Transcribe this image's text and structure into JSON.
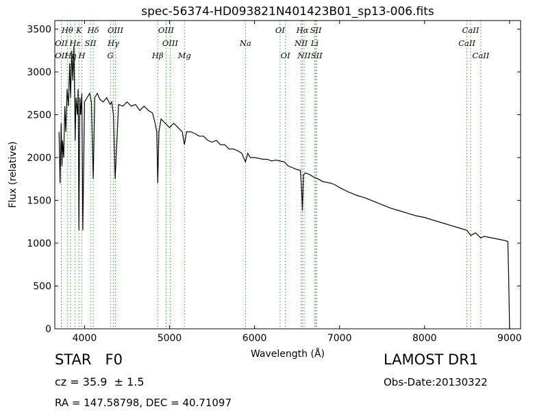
{
  "chart_data": {
    "type": "line",
    "title": "spec-56374-HD093821N401423B01_sp13-006.fits",
    "xlabel": "Wavelength (Å)",
    "ylabel": "Flux (relative)",
    "xlim": [
      3650,
      9130
    ],
    "ylim": [
      0,
      3600
    ],
    "xticks": [
      4000,
      5000,
      6000,
      7000,
      8000,
      9000
    ],
    "yticks": [
      0,
      500,
      1000,
      1500,
      2000,
      2500,
      3000,
      3500
    ],
    "grid": false,
    "line_color": "#000000",
    "marker_color": "#2ca02c",
    "series": [
      {
        "x": [
          3700,
          3712,
          3725,
          3735,
          3742,
          3755,
          3768,
          3780,
          3795,
          3810,
          3825,
          3835,
          3850,
          3862,
          3875,
          3885,
          3889,
          3900,
          3915,
          3925,
          3934,
          3945,
          3955,
          3968,
          3980,
          4000,
          4030,
          4060,
          4080,
          4102,
          4120,
          4150,
          4180,
          4220,
          4260,
          4300,
          4320,
          4340,
          4360,
          4400,
          4450,
          4500,
          4550,
          4600,
          4650,
          4700,
          4750,
          4800,
          4830,
          4850,
          4861,
          4875,
          4900,
          4950,
          5000,
          5050,
          5100,
          5150,
          5175,
          5200,
          5250,
          5300,
          5350,
          5400,
          5450,
          5500,
          5550,
          5600,
          5650,
          5700,
          5750,
          5800,
          5850,
          5893,
          5920,
          5950,
          6000,
          6050,
          6100,
          6150,
          6200,
          6250,
          6300,
          6350,
          6400,
          6450,
          6500,
          6540,
          6555,
          6563,
          6575,
          6600,
          6650,
          6700,
          6750,
          6800,
          6850,
          6900,
          6950,
          7000,
          7100,
          7200,
          7300,
          7400,
          7500,
          7600,
          7700,
          7800,
          7900,
          8000,
          8100,
          8200,
          8300,
          8400,
          8500,
          8542,
          8600,
          8662,
          8700,
          8800,
          8900,
          8950,
          8980,
          8990,
          9000,
          9010
        ],
        "y": [
          2300,
          1700,
          2400,
          1900,
          2200,
          2000,
          2600,
          2300,
          2800,
          2600,
          3100,
          2700,
          3250,
          2900,
          3300,
          2600,
          2200,
          2700,
          2500,
          2800,
          1150,
          2700,
          2500,
          2750,
          1150,
          2650,
          2700,
          2750,
          2650,
          1750,
          2700,
          2750,
          2680,
          2650,
          2700,
          2620,
          2650,
          2500,
          1750,
          2620,
          2600,
          2650,
          2600,
          2620,
          2550,
          2600,
          2550,
          2520,
          2400,
          2300,
          1700,
          2300,
          2450,
          2400,
          2350,
          2400,
          2350,
          2300,
          2150,
          2300,
          2300,
          2280,
          2250,
          2250,
          2200,
          2180,
          2200,
          2150,
          2150,
          2100,
          2100,
          2080,
          2050,
          1950,
          2050,
          2000,
          2000,
          1990,
          1980,
          1980,
          1960,
          1970,
          1960,
          1950,
          1900,
          1880,
          1860,
          1850,
          1600,
          1380,
          1800,
          1820,
          1800,
          1770,
          1750,
          1720,
          1710,
          1700,
          1680,
          1650,
          1600,
          1560,
          1530,
          1490,
          1450,
          1410,
          1380,
          1350,
          1320,
          1300,
          1270,
          1240,
          1210,
          1180,
          1150,
          1090,
          1120,
          1060,
          1080,
          1060,
          1040,
          1030,
          1020,
          600,
          0,
          0
        ]
      }
    ],
    "lines": [
      {
        "label": "Hθ",
        "x": 3798,
        "row": 0
      },
      {
        "label": "K",
        "x": 3934,
        "row": 0
      },
      {
        "label": "Hδ",
        "x": 4102,
        "row": 0
      },
      {
        "label": "OIII",
        "x": 4363,
        "row": 0
      },
      {
        "label": "OIII",
        "x": 4959,
        "row": 0
      },
      {
        "label": "OI",
        "x": 6300,
        "row": 0
      },
      {
        "label": "Hα",
        "x": 6563,
        "row": 0
      },
      {
        "label": "SII",
        "x": 6720,
        "row": 0
      },
      {
        "label": "CaII",
        "x": 8542,
        "row": 0
      },
      {
        "label": "OII",
        "x": 3727,
        "row": 1
      },
      {
        "label": "Hε",
        "x": 3889,
        "row": 1
      },
      {
        "label": "SII",
        "x": 4070,
        "row": 1
      },
      {
        "label": "Hγ",
        "x": 4340,
        "row": 1
      },
      {
        "label": "OIII",
        "x": 5007,
        "row": 1
      },
      {
        "label": "NII",
        "x": 6548,
        "row": 1
      },
      {
        "label": "Li",
        "x": 6708,
        "row": 1
      },
      {
        "label": "CaII",
        "x": 8498,
        "row": 1
      },
      {
        "label": "OII",
        "x": 3727,
        "row": 2
      },
      {
        "label": "Hη",
        "x": 3835,
        "row": 2
      },
      {
        "label": "H",
        "x": 3968,
        "row": 2
      },
      {
        "label": "G",
        "x": 4304,
        "row": 2
      },
      {
        "label": "Hβ",
        "x": 4861,
        "row": 2
      },
      {
        "label": "Mg",
        "x": 5175,
        "row": 2
      },
      {
        "label": "Na",
        "x": 5893,
        "row": 1
      },
      {
        "label": "OI",
        "x": 6363,
        "row": 2
      },
      {
        "label": "NII",
        "x": 6583,
        "row": 2
      },
      {
        "label": "SII",
        "x": 6730,
        "row": 2
      },
      {
        "label": "CaII",
        "x": 8662,
        "row": 2
      }
    ]
  },
  "info": {
    "class": "STAR   F0",
    "cz": "cz = 35.9  ± 1.5",
    "radec": "RA = 147.58798, DEC = 40.71097",
    "survey": "LAMOST DR1",
    "obsdate": "Obs-Date:20130322"
  }
}
